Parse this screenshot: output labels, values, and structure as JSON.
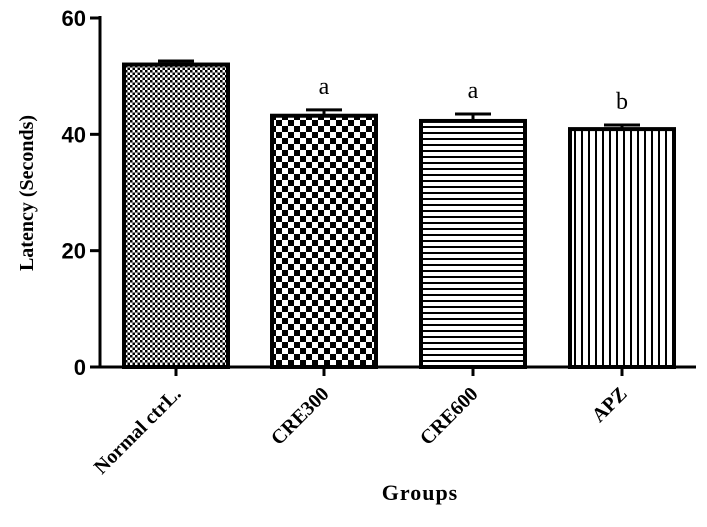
{
  "chart_data": {
    "type": "bar",
    "xlabel": "Groups",
    "ylabel": "Latency  (Seconds)",
    "ylim": [
      0,
      60
    ],
    "yticks": [
      "0",
      "20",
      "40",
      "60"
    ],
    "grid": false,
    "categories": [
      "Normal ctrL.",
      "CRE300",
      "CRE600",
      "APZ"
    ],
    "values": [
      52.0,
      43.2,
      42.3,
      40.9
    ],
    "errors": [
      0.6,
      1.0,
      1.2,
      0.7
    ],
    "annotations": [
      "",
      "a",
      "a",
      "b"
    ],
    "patterns": [
      "dots",
      "checker",
      "horizontal-lines",
      "vertical-lines"
    ]
  }
}
